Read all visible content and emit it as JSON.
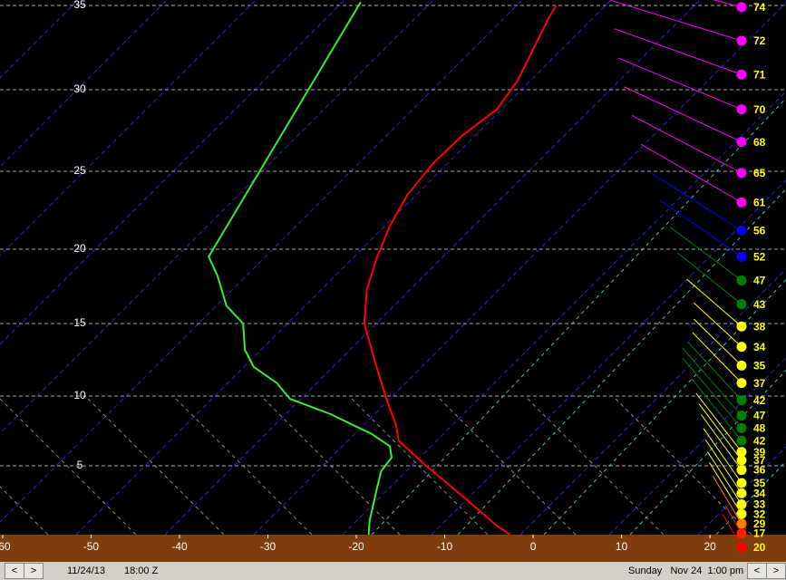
{
  "chart_data": {
    "type": "line",
    "xlim": [
      -60.3,
      28.6
    ],
    "xticks": [
      -60,
      -50,
      -40,
      -30,
      -20,
      -10,
      0,
      10,
      20
    ],
    "ylim": [
      0,
      35
    ],
    "yticks": [
      5,
      10,
      15,
      20,
      25,
      30,
      35
    ],
    "grid": true,
    "series": [
      {
        "color": "#ff0000",
        "x": [
          -2.6,
          -4.1,
          -8.0,
          -12.1,
          -15.2,
          -15.5,
          -16.7,
          -17.9,
          -19.1,
          -18.8,
          -17.7,
          -16.2,
          -14.2,
          -11.3,
          -8.0,
          -4.1,
          -1.8,
          0.2,
          1.7,
          2.6
        ],
        "values": [
          0,
          0.65,
          2.8,
          5,
          6.8,
          7.9,
          10,
          12.4,
          15,
          17.3,
          19.4,
          21.5,
          23.5,
          25.5,
          27.2,
          28.8,
          30.5,
          32.6,
          34.2,
          35
        ]
      },
      {
        "color": "#33ee33",
        "x": [
          -18.6,
          -18.5,
          -17.8,
          -17.2,
          -16.0,
          -16.2,
          -18.3,
          -20.3,
          -22.9,
          -27.5,
          -29.0,
          -31.6,
          -32.6,
          -32.8,
          -34.7,
          -35.7,
          -36.7,
          -19.5
        ],
        "values": [
          0,
          1,
          3,
          4.6,
          5.6,
          6.4,
          7.3,
          7.9,
          8.7,
          9.8,
          10.9,
          12,
          13.2,
          15,
          16.2,
          18.2,
          19.5,
          35.2
        ]
      }
    ],
    "winds": {
      "y": [
        34.9,
        32.9,
        30.9,
        28.8,
        26.8,
        24.9,
        23.0,
        21.2,
        19.5,
        17.9,
        16.3,
        14.8,
        13.4,
        12.1,
        10.9,
        9.7,
        8.6,
        7.7,
        6.8,
        6.0,
        5.4,
        4.7,
        3.75,
        3.0,
        2.2,
        1.5,
        0.8,
        0.1,
        -0.9
      ],
      "values": [
        74,
        72,
        71,
        70,
        68,
        65,
        61,
        56,
        52,
        47,
        43,
        38,
        34,
        35,
        37,
        42,
        47,
        48,
        42,
        39,
        37,
        36,
        35,
        34,
        33,
        32,
        29,
        17,
        20
      ],
      "colors": [
        "#ff00ff",
        "#ff00ff",
        "#ff00ff",
        "#ff00ff",
        "#ff00ff",
        "#ff00ff",
        "#ff00ff",
        "#0000ff",
        "#0000ff",
        "#008000",
        "#008000",
        "#ffff00",
        "#ffff00",
        "#ffff00",
        "#ffff00",
        "#008000",
        "#008000",
        "#008000",
        "#008000",
        "#ffff00",
        "#ffff00",
        "#ffff00",
        "#ffff00",
        "#ffff00",
        "#ffff00",
        "#ffff00",
        "#ff8000",
        "#ff2000",
        "#ff0000"
      ]
    }
  },
  "footer": {
    "date": "11/24/13",
    "time": "18:00 Z",
    "local": "Sunday   Nov 24  1:00 pm"
  }
}
